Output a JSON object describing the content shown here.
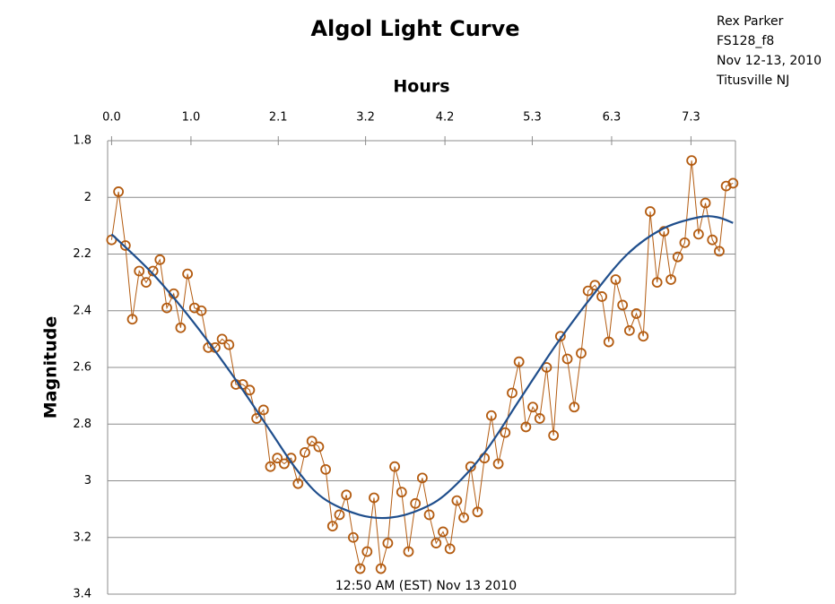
{
  "chart_data": {
    "type": "line",
    "title": "Algol Light Curve",
    "x_label": "Hours",
    "y_label": "Magnitude",
    "annotations": [
      "Rex Parker",
      "FS128_f8",
      "Nov 12-13, 2010",
      "Titusville NJ"
    ],
    "footer": "12:50 AM (EST)  Nov 13 2010",
    "xlim": [
      -0.05,
      7.86
    ],
    "xticks": [
      {
        "value": 0,
        "label": "0.0"
      },
      {
        "value": 1,
        "label": "1.0"
      },
      2.1,
      3.2,
      4.2,
      5.3,
      6.3,
      7.3
    ],
    "ylim": [
      1.8,
      3.4
    ],
    "y_inverted": true,
    "yticks": [
      1.8,
      2,
      2.2,
      2.4,
      2.6,
      2.8,
      3,
      3.2,
      3.4
    ],
    "grid": true,
    "series": [
      {
        "color": "#b35b10",
        "markers": true,
        "x": [
          0,
          0.087,
          0.174,
          0.261,
          0.348,
          0.435,
          0.522,
          0.609,
          0.696,
          0.783,
          0.87,
          0.957,
          1.044,
          1.131,
          1.218,
          1.305,
          1.392,
          1.479,
          1.566,
          1.653,
          1.74,
          1.827,
          1.914,
          2.001,
          2.088,
          2.175,
          2.262,
          2.349,
          2.436,
          2.523,
          2.61,
          2.697,
          2.784,
          2.871,
          2.958,
          3.045,
          3.132,
          3.219,
          3.306,
          3.393,
          3.48,
          3.567,
          3.654,
          3.741,
          3.828,
          3.915,
          4.002,
          4.089,
          4.176,
          4.263,
          4.35,
          4.437,
          4.524,
          4.611,
          4.698,
          4.785,
          4.872,
          4.959,
          5.046,
          5.133,
          5.22,
          5.307,
          5.394,
          5.481,
          5.568,
          5.655,
          5.742,
          5.829,
          5.916,
          6.003,
          6.09,
          6.177,
          6.264,
          6.351,
          6.438,
          6.525,
          6.612,
          6.699,
          6.786,
          6.873,
          6.96,
          7.047,
          7.134,
          7.221,
          7.308,
          7.395,
          7.482,
          7.569,
          7.656,
          7.743,
          7.83
        ],
        "values": [
          2.15,
          1.98,
          2.17,
          2.43,
          2.26,
          2.3,
          2.26,
          2.22,
          2.39,
          2.34,
          2.46,
          2.27,
          2.39,
          2.4,
          2.53,
          2.53,
          2.5,
          2.52,
          2.66,
          2.66,
          2.68,
          2.78,
          2.75,
          2.95,
          2.92,
          2.94,
          2.92,
          3.01,
          2.9,
          2.86,
          2.88,
          2.96,
          3.16,
          3.12,
          3.05,
          3.2,
          3.31,
          3.25,
          3.06,
          3.31,
          3.22,
          2.95,
          3.04,
          3.25,
          3.08,
          2.99,
          3.12,
          3.22,
          3.18,
          3.24,
          3.07,
          3.13,
          2.95,
          3.11,
          2.92,
          2.77,
          2.94,
          2.83,
          2.69,
          2.58,
          2.81,
          2.74,
          2.78,
          2.6,
          2.84,
          2.49,
          2.57,
          2.74,
          2.55,
          2.33,
          2.31,
          2.35,
          2.51,
          2.29,
          2.38,
          2.47,
          2.41,
          2.49,
          2.05,
          2.3,
          2.12,
          2.29,
          2.21,
          2.16,
          1.87,
          2.13,
          2.02,
          2.15,
          2.19,
          1.96,
          1.95
        ]
      },
      {
        "color": "#1f4e8c",
        "markers": false,
        "smooth": true,
        "x": [
          0,
          0.52,
          1.03,
          1.53,
          1.99,
          2.33,
          2.66,
          3.12,
          3.51,
          3.9,
          4.24,
          4.7,
          5.15,
          5.6,
          6.05,
          6.5,
          6.95,
          7.4,
          7.63,
          7.83
        ],
        "values": [
          2.13,
          2.27,
          2.44,
          2.63,
          2.82,
          2.96,
          3.06,
          3.12,
          3.13,
          3.1,
          3.04,
          2.9,
          2.71,
          2.52,
          2.35,
          2.2,
          2.11,
          2.07,
          2.07,
          2.09
        ]
      }
    ]
  }
}
